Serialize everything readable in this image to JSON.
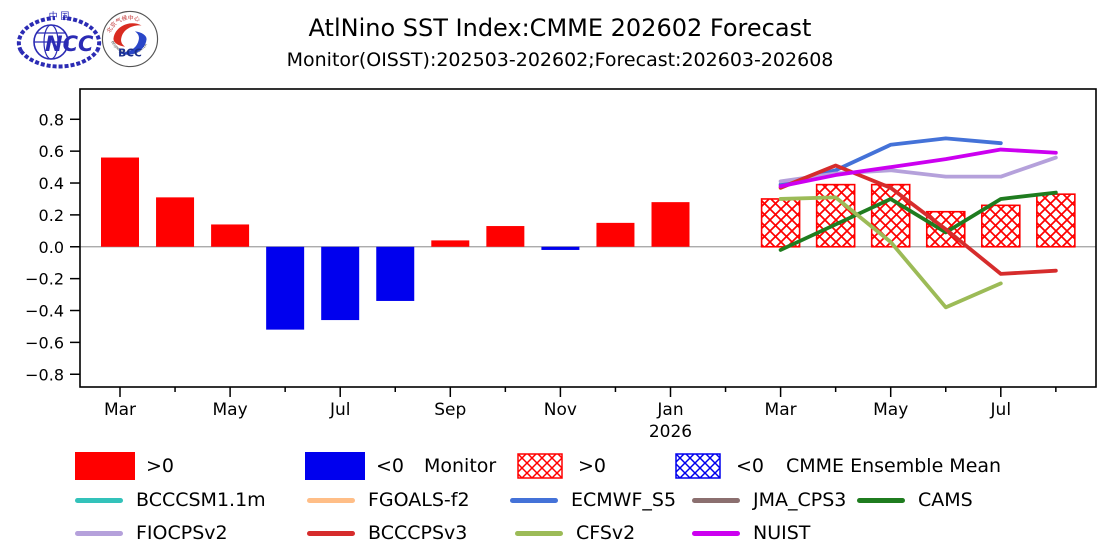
{
  "header": {
    "title": "AtlNino SST Index:CMME 202602 Forecast",
    "subtitle": "Monitor(OISST):202503-202602;Forecast:202603-202608",
    "logos": {
      "ncc_top_text": "中 国",
      "ncc_text": "NCC",
      "bcc_text": "BCC",
      "bcc_ring_top": "北京气候中心",
      "bcc_ring_bottom": "BEIJING CLIMATE CENTER"
    }
  },
  "chart_data": {
    "type": "bar+line",
    "months": [
      "2025-03",
      "2025-04",
      "2025-05",
      "2025-06",
      "2025-07",
      "2025-08",
      "2025-09",
      "2025-10",
      "2025-11",
      "2025-12",
      "2026-01",
      "2026-02",
      "2026-03",
      "2026-04",
      "2026-05",
      "2026-06",
      "2026-07",
      "2026-08"
    ],
    "x_major_tick_labels": [
      "Mar",
      "May",
      "Jul",
      "Sep",
      "Nov",
      "Jan",
      "Mar",
      "May",
      "Jul"
    ],
    "x_year_label": "2026",
    "x_year_label_month_index": 10,
    "yticks": [
      -0.8,
      -0.6,
      -0.4,
      -0.2,
      0.0,
      0.2,
      0.4,
      0.6,
      0.8
    ],
    "ylim": [
      -0.88,
      0.99
    ],
    "grid": false,
    "zero_line_color": "#A0A0A0",
    "monitor_bars": {
      "label": "Monitor",
      "start_index": 0,
      "values": [
        0.56,
        0.31,
        0.14,
        -0.52,
        -0.46,
        -0.34,
        0.04,
        0.13,
        -0.02,
        0.15,
        0.28,
        0.0
      ],
      "pos_color": "#FF0000",
      "neg_color": "#0000EE"
    },
    "cmme_bars": {
      "label": "CMME Ensemble Mean",
      "style": "crosshatch",
      "start_index": 12,
      "values": [
        0.3,
        0.39,
        0.39,
        0.22,
        0.26,
        0.33
      ],
      "pos_color": "#FF0000",
      "neg_color": "#0000EE"
    },
    "series": [
      {
        "name": "BCCCSM1.1m",
        "color": "#33C2BA",
        "start_index": 12,
        "values": []
      },
      {
        "name": "FGOALS-f2",
        "color": "#FFBE87",
        "start_index": 12,
        "values": []
      },
      {
        "name": "ECMWF_S5",
        "color": "#4472D8",
        "start_index": 12,
        "values": [
          0.39,
          0.48,
          0.64,
          0.68,
          0.65
        ]
      },
      {
        "name": "JMA_CPS3",
        "color": "#8B6F6F",
        "start_index": 12,
        "values": []
      },
      {
        "name": "CAMS",
        "color": "#1F7C1F",
        "start_index": 12,
        "values": [
          -0.02,
          0.14,
          0.3,
          0.09,
          0.3,
          0.34
        ]
      },
      {
        "name": "FIOCPSv2",
        "color": "#B5A1DB",
        "start_index": 12,
        "values": [
          0.41,
          0.46,
          0.48,
          0.44,
          0.44,
          0.56
        ]
      },
      {
        "name": "BCCCPSv3",
        "color": "#D62C2C",
        "start_index": 12,
        "values": [
          0.37,
          0.51,
          0.37,
          0.11,
          -0.17,
          -0.15
        ]
      },
      {
        "name": "CFSv2",
        "color": "#9CBB57",
        "start_index": 12,
        "values": [
          0.3,
          0.31,
          0.03,
          -0.38,
          -0.23
        ]
      },
      {
        "name": "NUIST",
        "color": "#CC00F0",
        "start_index": 12,
        "values": [
          0.38,
          0.45,
          0.5,
          0.55,
          0.61,
          0.59
        ]
      }
    ]
  },
  "legend": {
    "monitor": {
      "pos": ">0",
      "neg": "<0",
      "label": "Monitor"
    },
    "cmme": {
      "pos": ">0",
      "neg": "<0",
      "label": "CMME Ensemble Mean"
    }
  }
}
